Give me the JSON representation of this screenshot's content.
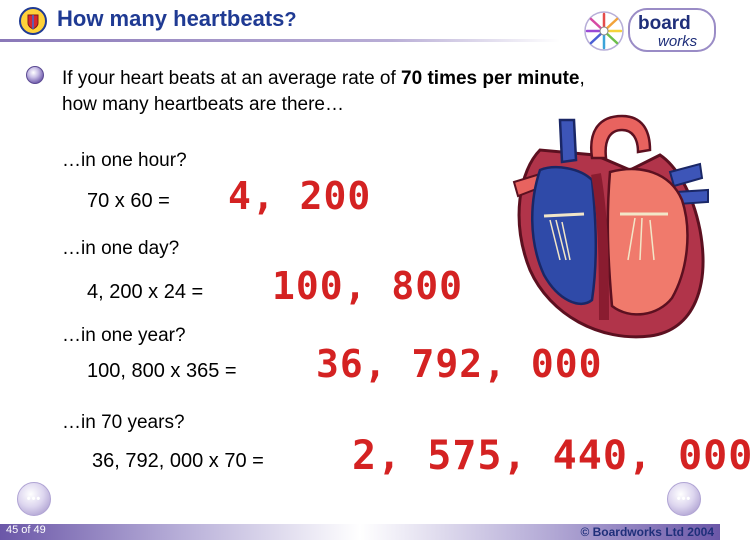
{
  "header": {
    "title": "How many heartbeats",
    "title_mark": "?"
  },
  "logo": {
    "line1": "board",
    "line2": "works"
  },
  "intro": {
    "text_before": "If your heart beats at an average rate of ",
    "emphasis": "70 times per minute",
    "text_after": ", how many heartbeats are there…"
  },
  "questions": [
    {
      "label": "…in one hour?",
      "calc": "70 x 60  =",
      "answer": "4, 200"
    },
    {
      "label": "…in one day?",
      "calc": "4, 200 x 24  =",
      "answer": "100, 800"
    },
    {
      "label": "…in one year?",
      "calc": "100, 800 x 365  =",
      "answer": "36, 792, 000"
    },
    {
      "label": "…in 70 years?",
      "calc": "36, 792, 000 x 70  =",
      "answer": "2, 575, 440, 000"
    }
  ],
  "footer": {
    "page": "45 of 49",
    "copyright": "© Boardworks Ltd 2004",
    "prev_label": "•••",
    "next_label": "•••"
  },
  "colors": {
    "title": "#1f3a93",
    "answer": "#d42222",
    "accent": "#6b57a8"
  },
  "icons": [
    "heart-shield-icon",
    "logo-wheel-icon",
    "bullet-icon",
    "heart-diagram-image",
    "previous-icon",
    "next-icon"
  ]
}
